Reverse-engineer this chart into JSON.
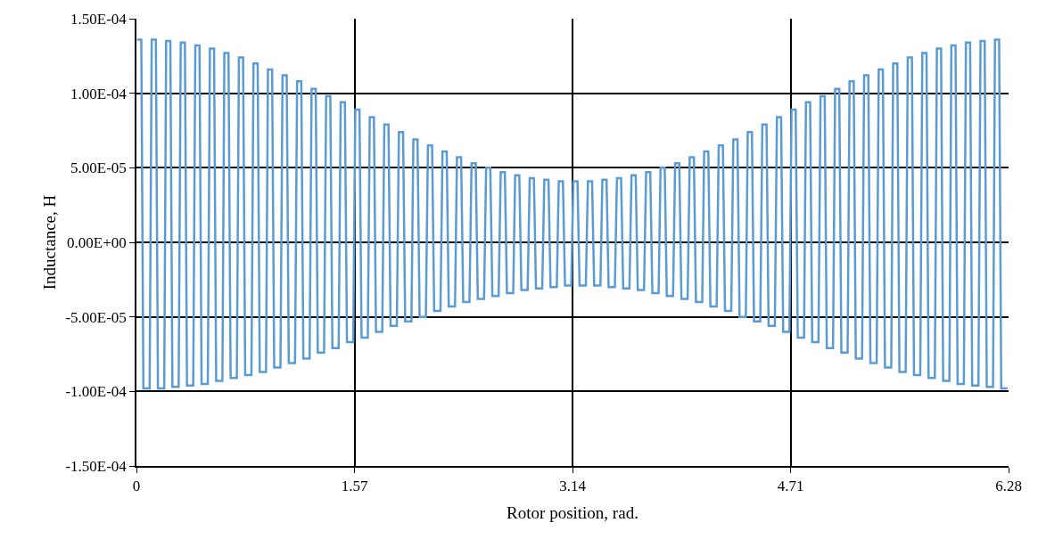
{
  "chart_data": {
    "type": "line",
    "xlabel": "Rotor position, rad.",
    "ylabel": "Inductance, H",
    "xlim": [
      0,
      6.28
    ],
    "xticks": [
      0,
      1.57,
      3.14,
      4.71,
      6.28
    ],
    "ylim": [
      -0.00015,
      0.00015
    ],
    "yticks": [
      {
        "value": -0.00015,
        "label": "-1.50E-04"
      },
      {
        "value": -0.0001,
        "label": "-1.00E-04"
      },
      {
        "value": -5e-05,
        "label": "-5.00E-05"
      },
      {
        "value": 0,
        "label": "0.00E+00"
      },
      {
        "value": 5e-05,
        "label": "5.00E-05"
      },
      {
        "value": 0.0001,
        "label": "1.00E-04"
      },
      {
        "value": 0.00015,
        "label": "1.50E-04"
      }
    ],
    "grid": true,
    "marker": "none",
    "line_style": "solid",
    "series": [
      {
        "color": "#5b9bd5",
        "x": [
          0.005,
          0.035,
          0.05,
          0.095,
          0.11,
          0.14,
          0.155,
          0.2,
          0.214,
          0.244,
          0.259,
          0.304,
          0.319,
          0.349,
          0.364,
          0.409,
          0.424,
          0.454,
          0.469,
          0.514,
          0.529,
          0.559,
          0.574,
          0.619,
          0.633,
          0.663,
          0.678,
          0.723,
          0.738,
          0.768,
          0.783,
          0.828,
          0.843,
          0.873,
          0.888,
          0.933,
          0.947,
          0.977,
          0.992,
          1.037,
          1.052,
          1.082,
          1.097,
          1.142,
          1.157,
          1.187,
          1.202,
          1.247,
          1.261,
          1.291,
          1.306,
          1.351,
          1.366,
          1.396,
          1.411,
          1.456,
          1.471,
          1.501,
          1.516,
          1.561,
          1.576,
          1.606,
          1.621,
          1.666,
          1.68,
          1.71,
          1.725,
          1.77,
          1.785,
          1.815,
          1.83,
          1.875,
          1.89,
          1.92,
          1.935,
          1.98,
          1.994,
          2.024,
          2.039,
          2.084,
          2.099,
          2.129,
          2.144,
          2.189,
          2.204,
          2.234,
          2.249,
          2.294,
          2.308,
          2.338,
          2.353,
          2.398,
          2.413,
          2.443,
          2.458,
          2.503,
          2.518,
          2.548,
          2.563,
          2.608,
          2.623,
          2.653,
          2.668,
          2.713,
          2.727,
          2.757,
          2.772,
          2.817,
          2.832,
          2.862,
          2.877,
          2.922,
          2.937,
          2.967,
          2.982,
          3.027,
          3.041,
          3.071,
          3.086,
          3.131,
          3.146,
          3.176,
          3.191,
          3.236,
          3.251,
          3.281,
          3.296,
          3.341,
          3.355,
          3.385,
          3.4,
          3.445,
          3.46,
          3.49,
          3.505,
          3.55,
          3.565,
          3.595,
          3.61,
          3.655,
          3.67,
          3.7,
          3.715,
          3.76,
          3.774,
          3.804,
          3.819,
          3.864,
          3.879,
          3.909,
          3.924,
          3.969,
          3.984,
          4.014,
          4.029,
          4.074,
          4.088,
          4.118,
          4.133,
          4.178,
          4.193,
          4.223,
          4.238,
          4.283,
          4.298,
          4.328,
          4.343,
          4.388,
          4.402,
          4.432,
          4.447,
          4.492,
          4.507,
          4.537,
          4.552,
          4.597,
          4.612,
          4.642,
          4.657,
          4.702,
          4.717,
          4.747,
          4.762,
          4.807,
          4.821,
          4.851,
          4.866,
          4.911,
          4.926,
          4.956,
          4.971,
          5.016,
          5.031,
          5.061,
          5.076,
          5.121,
          5.135,
          5.165,
          5.18,
          5.225,
          5.24,
          5.27,
          5.285,
          5.33,
          5.345,
          5.375,
          5.39,
          5.435,
          5.449,
          5.479,
          5.494,
          5.539,
          5.554,
          5.584,
          5.599,
          5.644,
          5.659,
          5.689,
          5.704,
          5.749,
          5.764,
          5.794,
          5.809,
          5.854,
          5.868,
          5.898,
          5.913,
          5.958,
          5.973,
          6.003,
          6.018,
          6.063,
          6.078,
          6.108,
          6.123,
          6.168,
          6.182,
          6.212,
          6.227,
          6.272
        ],
        "values": [
          0.000136,
          0.000136,
          -9.8e-05,
          -9.8e-05,
          0.000136,
          0.000136,
          -9.8e-05,
          -9.8e-05,
          0.000135,
          0.000135,
          -9.7e-05,
          -9.7e-05,
          0.000134,
          0.000134,
          -9.6e-05,
          -9.6e-05,
          0.000132,
          0.000132,
          -9.5e-05,
          -9.5e-05,
          0.00013,
          0.00013,
          -9.3e-05,
          -9.3e-05,
          0.000127,
          0.000127,
          -9.1e-05,
          -9.1e-05,
          0.000124,
          0.000124,
          -8.9e-05,
          -8.9e-05,
          0.00012,
          0.00012,
          -8.7e-05,
          -8.7e-05,
          0.000116,
          0.000116,
          -8.4e-05,
          -8.4e-05,
          0.000112,
          0.000112,
          -8.1e-05,
          -8.1e-05,
          0.000108,
          0.000108,
          -7.8e-05,
          -7.8e-05,
          0.000103,
          0.000103,
          -7.4e-05,
          -7.4e-05,
          9.8e-05,
          9.8e-05,
          -7.1e-05,
          -7.1e-05,
          9.4e-05,
          9.4e-05,
          -6.7e-05,
          -6.7e-05,
          8.9e-05,
          8.9e-05,
          -6.4e-05,
          -6.4e-05,
          8.4e-05,
          8.4e-05,
          -6e-05,
          -6e-05,
          7.9e-05,
          7.9e-05,
          -5.6e-05,
          -5.6e-05,
          7.4e-05,
          7.4e-05,
          -5.3e-05,
          -5.3e-05,
          6.9e-05,
          6.9e-05,
          -5e-05,
          -5e-05,
          6.5e-05,
          6.5e-05,
          -4.6e-05,
          -4.6e-05,
          6.1e-05,
          6.1e-05,
          -4.3e-05,
          -4.3e-05,
          5.7e-05,
          5.7e-05,
          -4e-05,
          -4e-05,
          5.3e-05,
          5.3e-05,
          -3.8e-05,
          -3.8e-05,
          5e-05,
          5e-05,
          -3.6e-05,
          -3.6e-05,
          4.7e-05,
          4.7e-05,
          -3.4e-05,
          -3.4e-05,
          4.5e-05,
          4.5e-05,
          -3.2e-05,
          -3.2e-05,
          4.3e-05,
          4.3e-05,
          -3.1e-05,
          -3.1e-05,
          4.2e-05,
          4.2e-05,
          -3e-05,
          -3e-05,
          4.1e-05,
          4.1e-05,
          -2.9e-05,
          -2.9e-05,
          4.1e-05,
          4.1e-05,
          -2.9e-05,
          -2.9e-05,
          4.1e-05,
          4.1e-05,
          -2.9e-05,
          -2.9e-05,
          4.2e-05,
          4.2e-05,
          -3e-05,
          -3e-05,
          4.3e-05,
          4.3e-05,
          -3.1e-05,
          -3.1e-05,
          4.5e-05,
          4.5e-05,
          -3.2e-05,
          -3.2e-05,
          4.7e-05,
          4.7e-05,
          -3.4e-05,
          -3.4e-05,
          5e-05,
          5e-05,
          -3.6e-05,
          -3.6e-05,
          5.3e-05,
          5.3e-05,
          -3.8e-05,
          -3.8e-05,
          5.7e-05,
          5.7e-05,
          -4e-05,
          -4e-05,
          6.1e-05,
          6.1e-05,
          -4.3e-05,
          -4.3e-05,
          6.5e-05,
          6.5e-05,
          -4.6e-05,
          -4.6e-05,
          6.9e-05,
          6.9e-05,
          -5e-05,
          -5e-05,
          7.4e-05,
          7.4e-05,
          -5.3e-05,
          -5.3e-05,
          7.9e-05,
          7.9e-05,
          -5.6e-05,
          -5.6e-05,
          8.4e-05,
          8.4e-05,
          -6e-05,
          -6e-05,
          8.9e-05,
          8.9e-05,
          -6.4e-05,
          -6.4e-05,
          9.4e-05,
          9.4e-05,
          -6.7e-05,
          -6.7e-05,
          9.8e-05,
          9.8e-05,
          -7.1e-05,
          -7.1e-05,
          0.000103,
          0.000103,
          -7.4e-05,
          -7.4e-05,
          0.000108,
          0.000108,
          -7.8e-05,
          -7.8e-05,
          0.000112,
          0.000112,
          -8.1e-05,
          -8.1e-05,
          0.000116,
          0.000116,
          -8.4e-05,
          -8.4e-05,
          0.00012,
          0.00012,
          -8.7e-05,
          -8.7e-05,
          0.000124,
          0.000124,
          -8.9e-05,
          -8.9e-05,
          0.000127,
          0.000127,
          -9.1e-05,
          -9.1e-05,
          0.00013,
          0.00013,
          -9.3e-05,
          -9.3e-05,
          0.000132,
          0.000132,
          -9.5e-05,
          -9.5e-05,
          0.000134,
          0.000134,
          -9.6e-05,
          -9.6e-05,
          0.000135,
          0.000135,
          -9.7e-05,
          -9.7e-05,
          0.000136,
          0.000136,
          -9.8e-05,
          -9.8e-05
        ]
      }
    ]
  }
}
